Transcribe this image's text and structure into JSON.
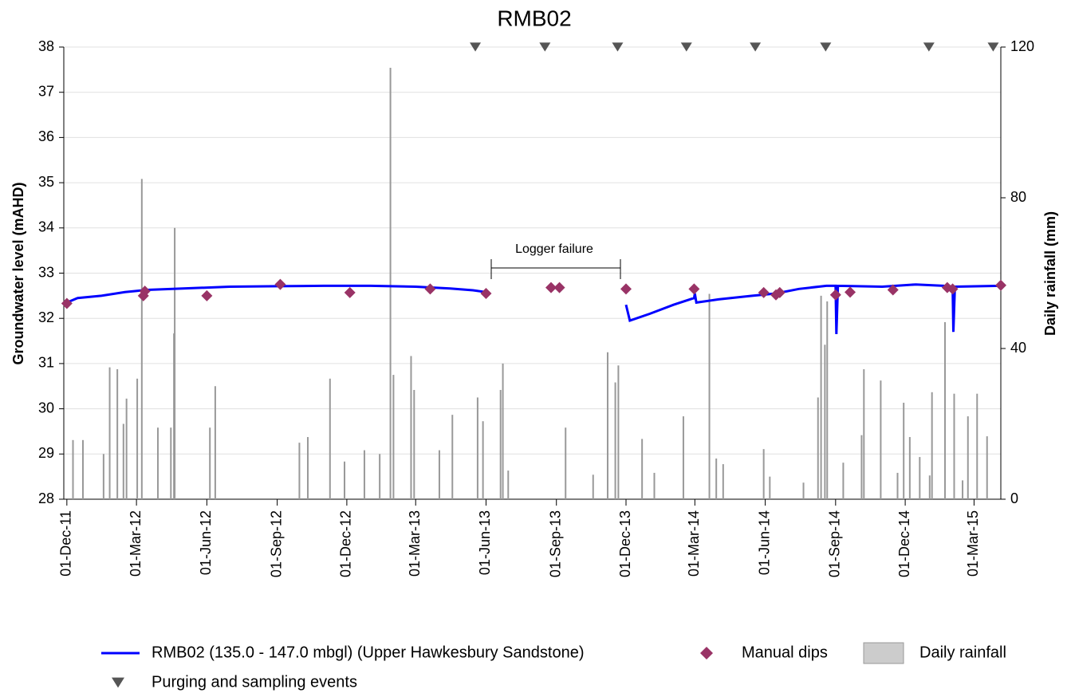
{
  "chart_data": {
    "type": "line",
    "title": "RMB02",
    "y_label": "Groundwater level (mAHD)",
    "y2_label": "Daily rainfall (mm)",
    "annotation": "Logger failure",
    "xlim": [
      "2011-11-27",
      "2015-04-05"
    ],
    "xticks": [
      {
        "value": "2011-12-01",
        "label": "01-Dec-11"
      },
      {
        "value": "2012-03-01",
        "label": "01-Mar-12"
      },
      {
        "value": "2012-06-01",
        "label": "01-Jun-12"
      },
      {
        "value": "2012-09-01",
        "label": "01-Sep-12"
      },
      {
        "value": "2012-12-01",
        "label": "01-Dec-12"
      },
      {
        "value": "2013-03-01",
        "label": "01-Mar-13"
      },
      {
        "value": "2013-06-01",
        "label": "01-Jun-13"
      },
      {
        "value": "2013-09-01",
        "label": "01-Sep-13"
      },
      {
        "value": "2013-12-01",
        "label": "01-Dec-13"
      },
      {
        "value": "2014-03-01",
        "label": "01-Mar-14"
      },
      {
        "value": "2014-06-01",
        "label": "01-Jun-14"
      },
      {
        "value": "2014-09-01",
        "label": "01-Sep-14"
      },
      {
        "value": "2014-12-01",
        "label": "01-Dec-14"
      },
      {
        "value": "2015-03-01",
        "label": "01-Mar-15"
      }
    ],
    "ylim": [
      28,
      38
    ],
    "yticks": [
      28,
      29,
      30,
      31,
      32,
      33,
      34,
      35,
      36,
      37,
      38
    ],
    "y2lim": [
      0,
      120
    ],
    "y2ticks": [
      0,
      40,
      80,
      120
    ],
    "grid": true,
    "series": [
      {
        "name": "RMB02 (135.0 - 147.0 mbgl) (Upper Hawkesbury Sandstone)",
        "type": "line",
        "color": "#0000ff",
        "x": [
          "2011-12-01",
          "2011-12-15",
          "2012-01-15",
          "2012-02-15",
          "2012-03-15",
          "2012-05-01",
          "2012-07-01",
          "2012-09-01",
          "2012-11-01",
          "2013-01-01",
          "2013-03-01",
          "2013-04-15",
          "2013-05-15",
          "2013-06-01",
          "2013-08-01",
          "2013-12-01",
          "2013-12-06",
          "2014-01-01",
          "2014-02-01",
          "2014-02-28",
          "2014-03-01",
          "2014-03-03",
          "2014-04-01",
          "2014-05-15",
          "2014-06-15",
          "2014-07-15",
          "2014-08-20",
          "2014-09-01",
          "2014-09-02",
          "2014-09-04",
          "2014-11-01",
          "2014-12-15",
          "2015-01-20",
          "2015-02-01",
          "2015-02-02",
          "2015-02-04",
          "2015-04-05"
        ],
        "values": [
          32.35,
          32.45,
          32.5,
          32.58,
          32.63,
          32.66,
          32.7,
          32.71,
          32.72,
          32.72,
          32.7,
          32.66,
          32.62,
          32.58,
          null,
          32.3,
          31.95,
          32.1,
          32.3,
          32.45,
          32.55,
          32.35,
          32.42,
          32.5,
          32.55,
          32.65,
          32.72,
          32.72,
          31.65,
          32.72,
          32.7,
          32.75,
          32.72,
          32.7,
          31.7,
          32.7,
          32.72
        ]
      },
      {
        "name": "Manual dips",
        "type": "scatter",
        "color": "#993366",
        "x": [
          "2011-12-01",
          "2012-03-10",
          "2012-03-12",
          "2012-06-01",
          "2012-09-05",
          "2012-12-05",
          "2013-03-20",
          "2013-06-01",
          "2013-08-25",
          "2013-09-05",
          "2013-12-01",
          "2014-02-28",
          "2014-05-30",
          "2014-06-15",
          "2014-06-20",
          "2014-09-01",
          "2014-09-20",
          "2014-11-15",
          "2015-01-25",
          "2015-02-01",
          "2015-04-05"
        ],
        "values": [
          32.33,
          32.5,
          32.6,
          32.5,
          32.75,
          32.57,
          32.65,
          32.55,
          32.68,
          32.68,
          32.65,
          32.65,
          32.57,
          32.52,
          32.57,
          32.52,
          32.58,
          32.63,
          32.68,
          32.65,
          32.73
        ]
      },
      {
        "name": "Daily rainfall",
        "type": "bar",
        "axis": "y2",
        "color": "#999999",
        "x": [
          "2011-12-09",
          "2011-12-22",
          "2012-01-18",
          "2012-01-26",
          "2012-02-05",
          "2012-02-13",
          "2012-02-17",
          "2012-03-02",
          "2012-03-08",
          "2012-03-29",
          "2012-04-15",
          "2012-04-19",
          "2012-04-20",
          "2012-06-05",
          "2012-06-12",
          "2012-09-30",
          "2012-10-11",
          "2012-11-09",
          "2012-11-28",
          "2012-12-24",
          "2013-01-13",
          "2013-01-27",
          "2013-01-31",
          "2013-02-23",
          "2013-02-27",
          "2013-04-01",
          "2013-04-18",
          "2013-05-21",
          "2013-05-28",
          "2013-06-20",
          "2013-06-23",
          "2013-06-30",
          "2013-09-13",
          "2013-10-19",
          "2013-11-07",
          "2013-11-17",
          "2013-11-21",
          "2013-12-22",
          "2014-01-07",
          "2014-02-14",
          "2014-03-20",
          "2014-03-29",
          "2014-04-07",
          "2014-05-30",
          "2014-06-07",
          "2014-07-21",
          "2014-08-09",
          "2014-08-13",
          "2014-08-18",
          "2014-08-21",
          "2014-09-11",
          "2014-10-05",
          "2014-10-08",
          "2014-10-30",
          "2014-11-21",
          "2014-11-29",
          "2014-12-07",
          "2014-12-20",
          "2015-01-02",
          "2015-01-05",
          "2015-01-22",
          "2015-02-03",
          "2015-02-14",
          "2015-02-21",
          "2015-03-05",
          "2015-03-18"
        ],
        "values": [
          15.7,
          15.7,
          12,
          35,
          34.5,
          20,
          26.7,
          32,
          85,
          19,
          19,
          44,
          72,
          19,
          30,
          15,
          16.5,
          32,
          10,
          13,
          12,
          114.5,
          33,
          38,
          29,
          13,
          22.4,
          27,
          20.7,
          29,
          36,
          7.6,
          19,
          6.5,
          39,
          31,
          35.5,
          16,
          7,
          22,
          54.5,
          10.8,
          9.3,
          13.3,
          6,
          4.4,
          27,
          54,
          41,
          52.5,
          9.7,
          17,
          34.5,
          31.5,
          7,
          25.6,
          16.5,
          11.2,
          6.3,
          28.4,
          47,
          28,
          5,
          22,
          28,
          16.7
        ]
      },
      {
        "name": "Purging and sampling events",
        "type": "event",
        "color": "#555555",
        "x": [
          "2013-05-18",
          "2013-08-17",
          "2013-11-20",
          "2014-02-18",
          "2014-05-19",
          "2014-08-19",
          "2015-01-01",
          "2015-03-26"
        ]
      }
    ]
  }
}
